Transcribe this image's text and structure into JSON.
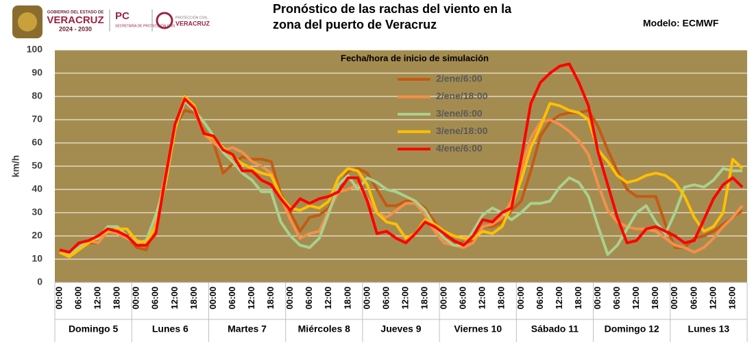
{
  "chart_data": {
    "type": "line",
    "title_lines": [
      "Pronóstico de las rachas del viento en la",
      "zona del puerto de Veracruz"
    ],
    "model_note": "Modelo: ECMWF",
    "logo_texts": [
      "GOBIERNO DEL ESTADO DE",
      "VERACRUZ",
      "2024 - 2030",
      "PC",
      "SECRETARÍA DE PROTECCIÓN CIVIL",
      "PROTECCIÓN CIVIL",
      "VERACRUZ"
    ],
    "y_label": "km/h",
    "legend_title": "Fecha/hora de inicio de simulación",
    "plot_background": "#a48c50",
    "grid": true,
    "ylim": [
      0,
      100
    ],
    "yticks": [
      0,
      10,
      20,
      30,
      40,
      50,
      60,
      70,
      80,
      90,
      100
    ],
    "groups": [
      "Domingo 5",
      "Lunes 6",
      "Martes 7",
      "Miércoles 8",
      "Jueves 9",
      "Viernes 10",
      "Sábado 11",
      "Domingo 12",
      "Lunes 13"
    ],
    "categories": [
      "00:00",
      null,
      "06:00",
      null,
      "12:00",
      null,
      "18:00",
      null,
      "00:00",
      null,
      "06:00",
      null,
      "12:00",
      null,
      "18:00",
      null,
      "00:00",
      null,
      "06:00",
      null,
      "12:00",
      null,
      "18:00",
      null,
      "00:00",
      null,
      "06:00",
      null,
      "12:00",
      null,
      "18:00",
      null,
      "00:00",
      null,
      "06:00",
      null,
      "12:00",
      null,
      "18:00",
      null,
      "00:00",
      null,
      "06:00",
      null,
      "12:00",
      null,
      "18:00",
      null,
      "00:00",
      null,
      "06:00",
      null,
      "12:00",
      null,
      "18:00",
      null,
      "00:00",
      null,
      "06:00",
      null,
      "12:00",
      null,
      "18:00",
      null,
      "00:00",
      null,
      "06:00",
      null,
      "12:00",
      null,
      "18:00",
      null
    ],
    "series": [
      {
        "name": "2/ene/6:00",
        "color": "#c55a11",
        "values": [
          14,
          13,
          14,
          17,
          17,
          22,
          22,
          20,
          15,
          14,
          25,
          45,
          67,
          74,
          73,
          65,
          60,
          47,
          51,
          54,
          53,
          53,
          52,
          38,
          30,
          22,
          28,
          29,
          32,
          40,
          48,
          49,
          47,
          40,
          33,
          33,
          35,
          35,
          32,
          26,
          20,
          17,
          17,
          18,
          24,
          24,
          26,
          31,
          35,
          48,
          63,
          69,
          72,
          73,
          73,
          74,
          67,
          57,
          48,
          40,
          37,
          37,
          37,
          25,
          15,
          15,
          19,
          20,
          22,
          25,
          28,
          31
        ]
      },
      {
        "name": "2/ene/18:00",
        "color": "#f4904a",
        "values": [
          13,
          12,
          15,
          18,
          17,
          22,
          21,
          19,
          17,
          16,
          27,
          46,
          67,
          78,
          74,
          64,
          60,
          57,
          58,
          56,
          52,
          50,
          47,
          37,
          27,
          19,
          21,
          22,
          31,
          39,
          40,
          42,
          36,
          30,
          28,
          31,
          34,
          34,
          29,
          22,
          17,
          16,
          15,
          17,
          24,
          25,
          28,
          35,
          49,
          62,
          69,
          70,
          68,
          65,
          61,
          55,
          42,
          31,
          26,
          24,
          23,
          23,
          22,
          19,
          16,
          15,
          13,
          15,
          19,
          24,
          28,
          33
        ]
      },
      {
        "name": "3/ene/6:00",
        "color": "#a9d18e",
        "values": [
          13,
          12,
          15,
          18,
          19,
          24,
          24,
          20,
          17,
          18,
          29,
          42,
          66,
          78,
          74,
          69,
          63,
          56,
          52,
          47,
          44,
          39,
          39,
          26,
          20,
          16,
          15,
          19,
          30,
          42,
          46,
          40,
          45,
          43,
          40,
          39,
          37,
          35,
          31,
          24,
          19,
          16,
          16,
          22,
          29,
          32,
          30,
          27,
          30,
          34,
          34,
          35,
          41,
          45,
          43,
          37,
          24,
          12,
          16,
          23,
          30,
          33,
          26,
          21,
          30,
          41,
          42,
          41,
          44,
          49,
          48,
          48
        ]
      },
      {
        "name": "3/ene/18:00",
        "color": "#ffc000",
        "values": [
          13,
          11,
          14,
          17,
          20,
          22,
          23,
          23,
          18,
          17,
          24,
          43,
          66,
          80,
          76,
          64,
          62,
          58,
          54,
          51,
          49,
          47,
          46,
          37,
          32,
          31,
          33,
          32,
          35,
          45,
          49,
          48,
          42,
          30,
          26,
          25,
          19,
          21,
          27,
          25,
          22,
          20,
          19,
          19,
          22,
          21,
          24,
          33,
          44,
          58,
          67,
          77,
          76,
          74,
          73,
          70,
          57,
          52,
          46,
          43,
          44,
          46,
          47,
          46,
          43,
          37,
          28,
          22,
          24,
          30,
          53,
          49
        ]
      },
      {
        "name": "4/ene/6:00",
        "color": "#ff0000",
        "values": [
          14,
          13,
          17,
          18,
          20,
          23,
          22,
          20,
          16,
          16,
          21,
          45,
          68,
          79,
          75,
          64,
          63,
          57,
          55,
          48,
          48,
          44,
          42,
          36,
          31,
          36,
          34,
          36,
          37,
          39,
          45,
          45,
          35,
          21,
          22,
          19,
          17,
          21,
          26,
          24,
          21,
          18,
          16,
          20,
          27,
          26,
          30,
          32,
          53,
          77,
          86,
          90,
          93,
          94,
          86,
          76,
          56,
          42,
          28,
          17,
          18,
          23,
          24,
          22,
          20,
          17,
          18,
          27,
          36,
          42,
          45,
          41
        ]
      }
    ]
  }
}
